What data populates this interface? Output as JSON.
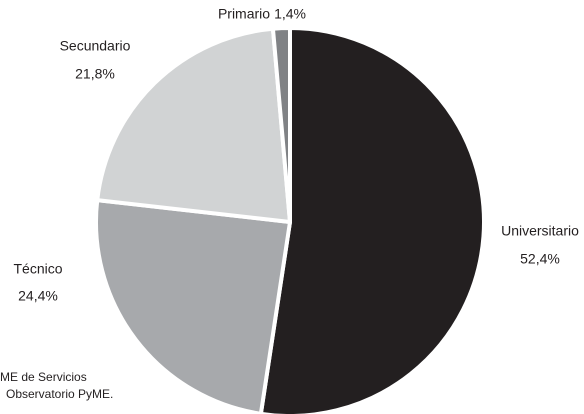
{
  "chart_data": {
    "type": "pie",
    "categories": [
      "Universitario",
      "Técnico",
      "Secundario",
      "Primario"
    ],
    "values": [
      52.4,
      24.4,
      21.8,
      1.4
    ],
    "value_labels": [
      "52,4%",
      "24,4%",
      "21,8%",
      "1,4%"
    ],
    "colors": [
      "#231f20",
      "#a7a9ac",
      "#d1d3d4",
      "#808285"
    ],
    "notes": [
      "ME de Servicios",
      "Observatorio PyME."
    ]
  }
}
